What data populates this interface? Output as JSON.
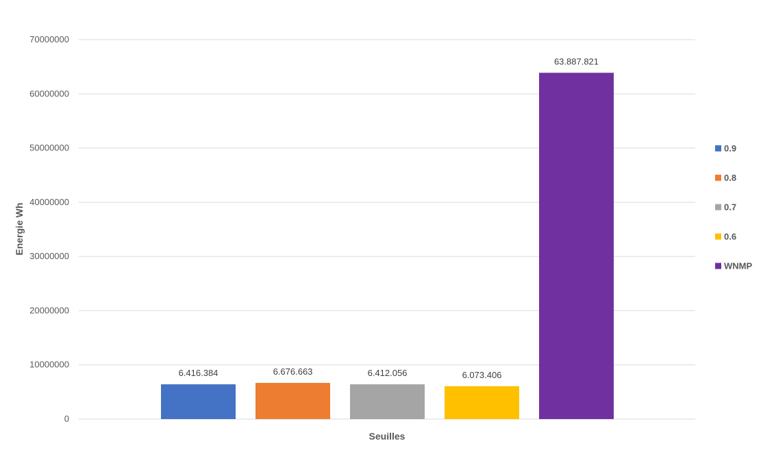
{
  "chart_data": {
    "type": "bar",
    "title": "",
    "xlabel": "Seuilles",
    "ylabel": "Energie Wh",
    "ylim": [
      0,
      70000000
    ],
    "ytick_step": 10000000,
    "grid": true,
    "legend_position": "right",
    "series": [
      {
        "name": "0.9",
        "value": 6416384,
        "label": "6.416.384",
        "color": "#4472C4"
      },
      {
        "name": "0.8",
        "value": 6676663,
        "label": "6.676.663",
        "color": "#ED7D31"
      },
      {
        "name": "0.7",
        "value": 6412056,
        "label": "6.412.056",
        "color": "#A5A5A5"
      },
      {
        "name": "0.6",
        "value": 6073406,
        "label": "6.073.406",
        "color": "#FFC000"
      },
      {
        "name": "WNMP",
        "value": 63887821,
        "label": "63.887.821",
        "color": "#7030A0"
      }
    ]
  }
}
